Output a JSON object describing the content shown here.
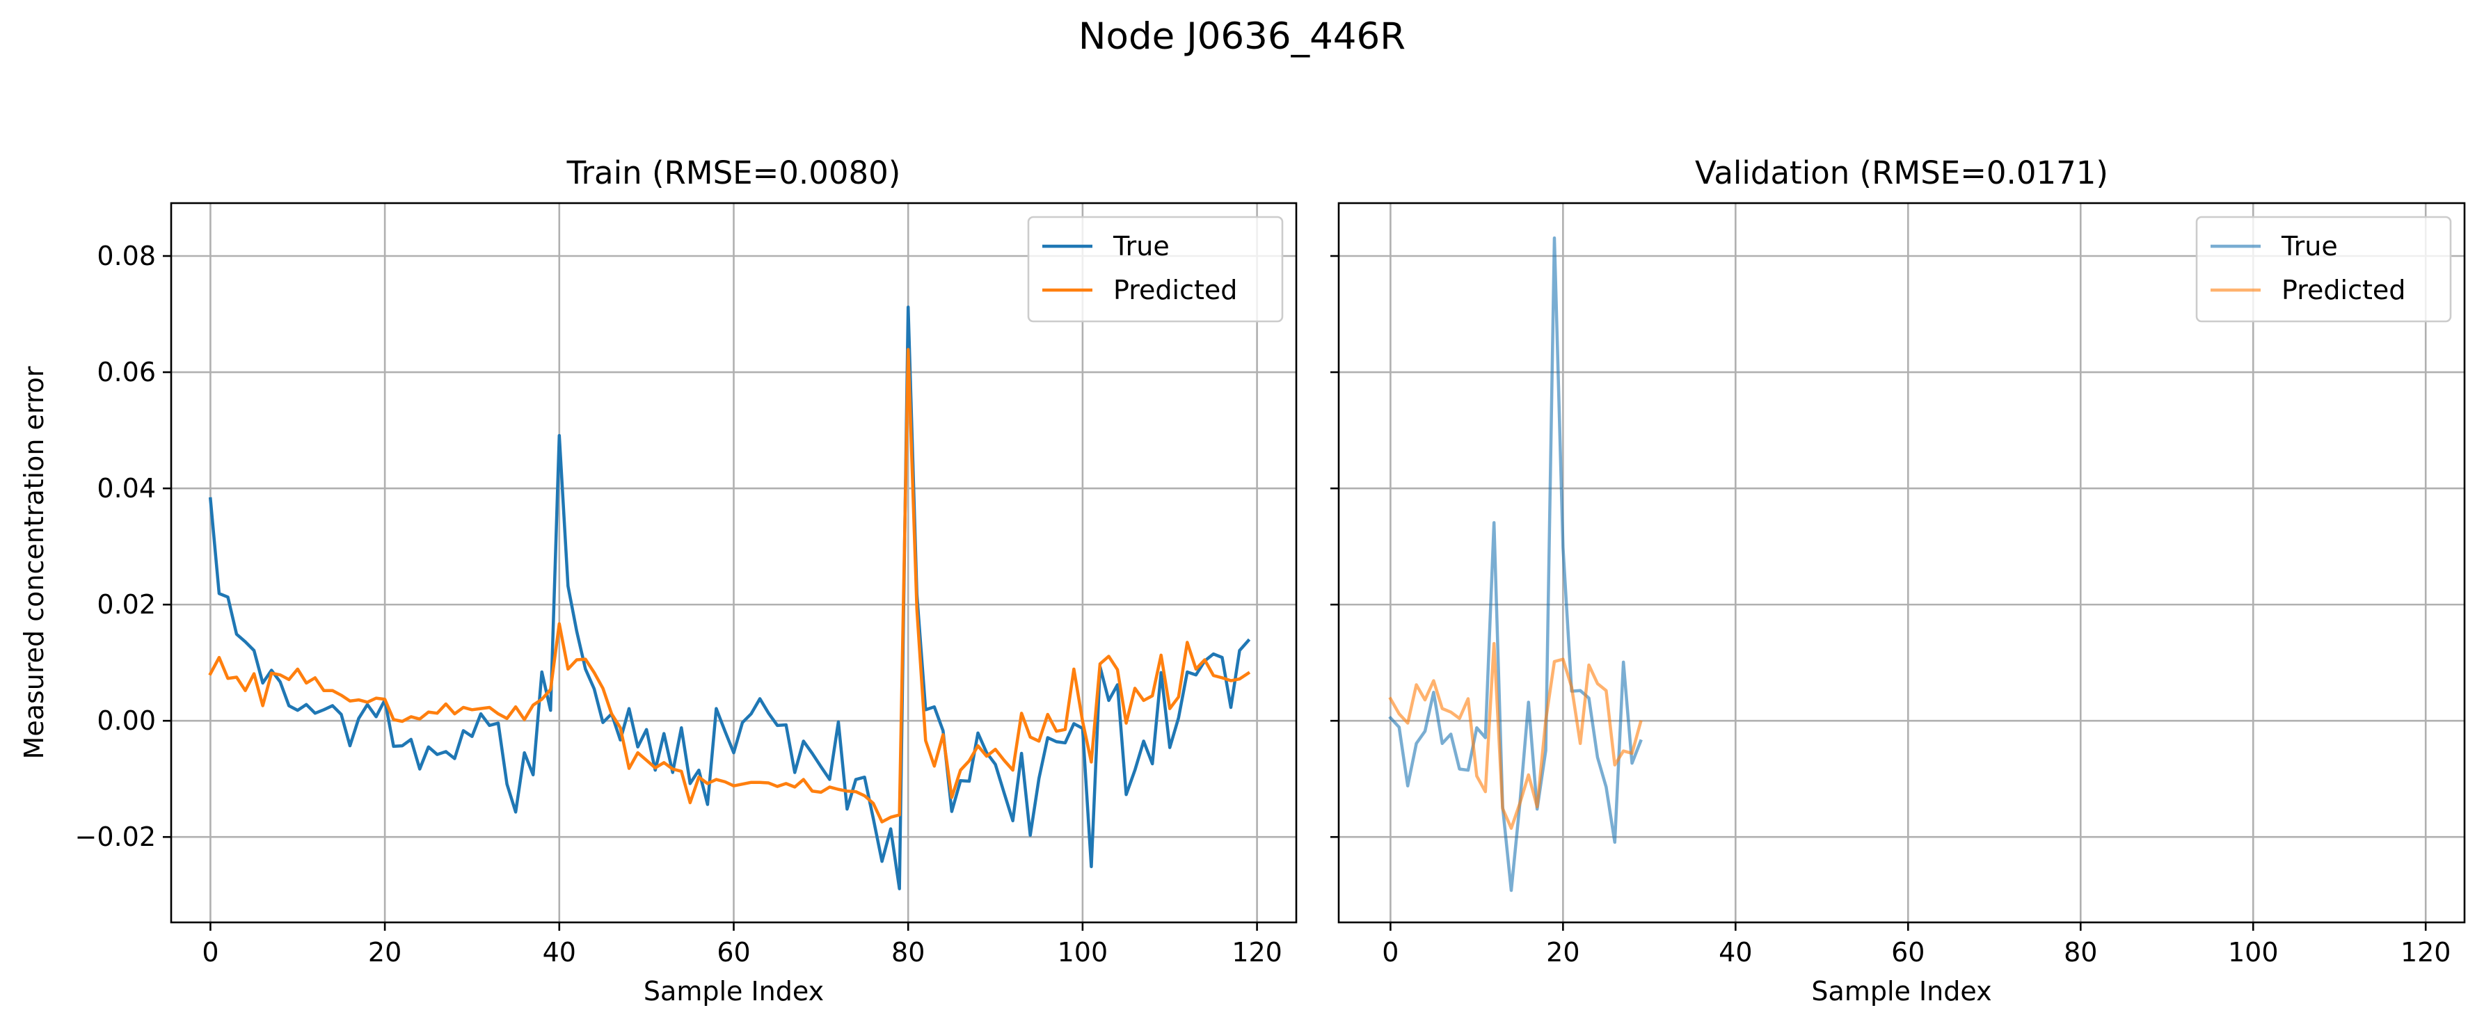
{
  "title": "Node J0636_446R",
  "chart_data": [
    {
      "type": "line",
      "title": "Train (RMSE=0.0080)",
      "xlabel": "Sample Index",
      "ylabel": "Measured concentration error",
      "xlim": [
        -4.5,
        124.5
      ],
      "ylim": [
        -0.0347,
        0.0891
      ],
      "xticks": [
        0,
        20,
        40,
        60,
        80,
        100,
        120
      ],
      "yticks": [
        -0.02,
        0.0,
        0.02,
        0.04,
        0.06,
        0.08
      ],
      "ytick_labels": [
        "−0.02",
        "0.00",
        "0.02",
        "0.04",
        "0.06",
        "0.08"
      ],
      "grid": true,
      "legend_position": "upper right",
      "series": [
        {
          "name": "True",
          "color": "#1f77b4",
          "opacity": 1.0,
          "x_start": 0,
          "values": [
            0.0382,
            0.0219,
            0.0213,
            0.0149,
            0.0136,
            0.0121,
            0.0065,
            0.0087,
            0.0067,
            0.0026,
            0.0018,
            0.0028,
            0.0013,
            0.0019,
            0.0026,
            0.0011,
            -0.0043,
            0.0004,
            0.0028,
            0.0007,
            0.0036,
            -0.0044,
            -0.0043,
            -0.0032,
            -0.0083,
            -0.0045,
            -0.0058,
            -0.0053,
            -0.0065,
            -0.0017,
            -0.0027,
            0.0012,
            -0.0008,
            -0.0004,
            -0.0109,
            -0.0157,
            -0.0055,
            -0.0093,
            0.0084,
            0.0018,
            0.0491,
            0.0232,
            0.0154,
            0.0089,
            0.0055,
            -0.0003,
            0.0012,
            -0.0033,
            0.0021,
            -0.0045,
            -0.0015,
            -0.0085,
            -0.0022,
            -0.0089,
            -0.0012,
            -0.0108,
            -0.0085,
            -0.0144,
            0.0021,
            -0.0018,
            -0.0055,
            -0.0003,
            0.0012,
            0.0038,
            0.0013,
            -0.0008,
            -0.0007,
            -0.0089,
            -0.0035,
            -0.0056,
            -0.0079,
            -0.0101,
            -0.0002,
            -0.0152,
            -0.0101,
            -0.0097,
            -0.0168,
            -0.0242,
            -0.0186,
            -0.0289,
            0.0712,
            0.0218,
            0.0019,
            0.0024,
            -0.0017,
            -0.0156,
            -0.0103,
            -0.0104,
            -0.0021,
            -0.0055,
            -0.0075,
            -0.0124,
            -0.0172,
            -0.0056,
            -0.0197,
            -0.0099,
            -0.0029,
            -0.0036,
            -0.0038,
            -0.0005,
            -0.0013,
            -0.0251,
            0.0093,
            0.0035,
            0.0062,
            -0.0127,
            -0.0085,
            -0.0035,
            -0.0074,
            0.0083,
            -0.0046,
            0.0005,
            0.0084,
            0.0079,
            0.0103,
            0.0115,
            0.0109,
            0.0023,
            0.0121,
            0.0138
          ]
        },
        {
          "name": "Predicted",
          "color": "#ff7f0e",
          "opacity": 1.0,
          "x_start": 0,
          "values": [
            0.0081,
            0.0109,
            0.0073,
            0.0075,
            0.0052,
            0.0081,
            0.0026,
            0.0082,
            0.0079,
            0.0071,
            0.0089,
            0.0065,
            0.0074,
            0.0052,
            0.0052,
            0.0044,
            0.0034,
            0.0036,
            0.0032,
            0.0039,
            0.0037,
            0.0002,
            -0.0001,
            0.0007,
            0.0003,
            0.0015,
            0.0013,
            0.0029,
            0.0012,
            0.0023,
            0.0019,
            0.0021,
            0.0023,
            0.0012,
            0.0004,
            0.0024,
            0.0002,
            0.0027,
            0.0037,
            0.0054,
            0.0167,
            0.0089,
            0.0105,
            0.0106,
            0.0083,
            0.0056,
            0.0012,
            -0.0012,
            -0.0082,
            -0.0055,
            -0.0068,
            -0.0081,
            -0.0072,
            -0.0083,
            -0.0087,
            -0.0141,
            -0.0097,
            -0.0108,
            -0.0101,
            -0.0105,
            -0.0112,
            -0.0109,
            -0.0106,
            -0.0106,
            -0.0107,
            -0.0113,
            -0.0108,
            -0.0114,
            -0.0101,
            -0.0121,
            -0.0123,
            -0.0114,
            -0.0118,
            -0.0121,
            -0.0122,
            -0.0129,
            -0.0142,
            -0.0174,
            -0.0166,
            -0.0162,
            0.0639,
            0.0192,
            -0.0034,
            -0.0078,
            -0.0024,
            -0.0132,
            -0.0085,
            -0.0069,
            -0.0043,
            -0.0061,
            -0.0049,
            -0.0068,
            -0.0085,
            0.0013,
            -0.0028,
            -0.0035,
            0.0011,
            -0.0018,
            -0.0015,
            0.0089,
            -0.0001,
            -0.0071,
            0.0098,
            0.0111,
            0.0088,
            -0.0004,
            0.0056,
            0.0035,
            0.0043,
            0.0113,
            0.0021,
            0.0041,
            0.0135,
            0.0089,
            0.0105,
            0.0078,
            0.0074,
            0.0069,
            0.0072,
            0.0082
          ]
        }
      ]
    },
    {
      "type": "line",
      "title": "Validation (RMSE=0.0171)",
      "xlabel": "Sample Index",
      "ylabel": "",
      "xlim": [
        -6,
        124.5
      ],
      "ylim": [
        -0.0347,
        0.0891
      ],
      "xticks": [
        0,
        20,
        40,
        60,
        80,
        100,
        120
      ],
      "yticks": [
        -0.02,
        0.0,
        0.02,
        0.04,
        0.06,
        0.08
      ],
      "ytick_labels": [],
      "grid": true,
      "legend_position": "upper right",
      "series": [
        {
          "name": "True",
          "color": "#1f77b4",
          "opacity": 0.6,
          "x_start": 0,
          "values": [
            0.0005,
            -0.0011,
            -0.0112,
            -0.0039,
            -0.0018,
            0.0049,
            -0.0039,
            -0.0023,
            -0.0083,
            -0.0085,
            -0.0012,
            -0.0029,
            0.0341,
            -0.0148,
            -0.0292,
            -0.0142,
            0.0032,
            -0.0152,
            -0.0051,
            0.0831,
            0.0298,
            0.0051,
            0.0052,
            0.0039,
            -0.0063,
            -0.0114,
            -0.0209,
            0.0101,
            -0.0073,
            -0.0035
          ]
        },
        {
          "name": "Predicted",
          "color": "#ff7f0e",
          "opacity": 0.6,
          "x_start": 0,
          "values": [
            0.0038,
            0.0012,
            -0.0004,
            0.0062,
            0.0036,
            0.0069,
            0.0021,
            0.0015,
            0.0004,
            0.0038,
            -0.0095,
            -0.0122,
            0.0133,
            -0.0151,
            -0.0185,
            -0.0142,
            -0.0093,
            -0.0148,
            0.0001,
            0.0102,
            0.0106,
            0.0058,
            -0.0039,
            0.0096,
            0.0064,
            0.0052,
            -0.0076,
            -0.0052,
            -0.0056,
            -0.0002
          ]
        }
      ]
    }
  ]
}
